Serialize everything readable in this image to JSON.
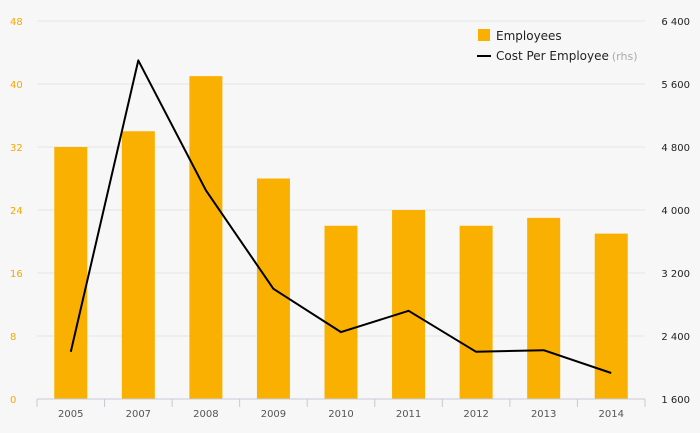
{
  "chart_data": {
    "type": "bar+line",
    "categories": [
      "2005",
      "2007",
      "2008",
      "2009",
      "2010",
      "2011",
      "2012",
      "2013",
      "2014"
    ],
    "series": [
      {
        "name": "Employees",
        "type": "bar",
        "axis": "left",
        "color": "#f9b000",
        "values": [
          32,
          34,
          41,
          28,
          22,
          24,
          22,
          23,
          21
        ]
      },
      {
        "name": "Cost Per Employee",
        "name_suffix": "(rhs)",
        "type": "line",
        "axis": "right",
        "color": "#000000",
        "values": [
          2200,
          5900,
          4250,
          3000,
          2450,
          2720,
          2200,
          2220,
          1930
        ]
      }
    ],
    "y_left": {
      "min": 0,
      "max": 48,
      "ticks": [
        "0",
        "8",
        "16",
        "24",
        "32",
        "40",
        "48"
      ],
      "color": "#f5a800"
    },
    "y_right": {
      "min": 1600,
      "max": 6400,
      "ticks": [
        "1 600",
        "2 400",
        "3 200",
        "4 000",
        "4 800",
        "5 600",
        "6 400"
      ]
    },
    "grid": true,
    "legend_position": "top-right"
  }
}
